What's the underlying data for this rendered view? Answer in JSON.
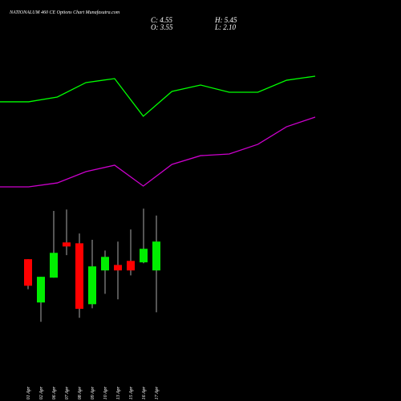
{
  "header": {
    "title": "NATIONALUM 460 CE Options Chart Munafasutra.com",
    "close": "C: 4.55",
    "open": "O: 3.55",
    "high": "H: 5.45",
    "low": "L: 2.10"
  },
  "chart_data": [
    {
      "type": "line",
      "x": [
        0,
        1,
        2,
        3,
        4,
        5,
        6,
        7,
        8,
        9,
        10,
        11
      ],
      "xlim": [
        0,
        11
      ],
      "ylim": [
        0,
        100
      ],
      "series": [
        {
          "color": "#00ff00",
          "values": [
            72.4,
            72.4,
            75.9,
            86.5,
            89.4,
            61.8,
            80.0,
            84.7,
            79.4,
            79.4,
            88.2,
            91.2
          ]
        },
        {
          "color": "#cc00cc",
          "values": [
            10.0,
            10.0,
            12.9,
            21.2,
            25.9,
            10.6,
            26.5,
            32.9,
            34.1,
            41.2,
            54.1,
            61.2
          ]
        }
      ]
    },
    {
      "type": "candlestick",
      "categories": [
        "01 Apr",
        "02 Apr",
        "06 Apr",
        "07 Apr",
        "08 Apr",
        "09 Apr",
        "10 Apr",
        "13 Apr",
        "15 Apr",
        "16 Apr",
        "17 Apr"
      ],
      "open": [
        3.94,
        2.44,
        3.3,
        4.52,
        4.49,
        2.38,
        3.55,
        3.74,
        3.88,
        3.83,
        3.55
      ],
      "high": [
        3.94,
        3.33,
        5.61,
        5.66,
        4.83,
        4.61,
        4.24,
        4.55,
        4.97,
        5.69,
        5.45
      ],
      "low": [
        2.9,
        1.77,
        3.3,
        4.08,
        1.91,
        2.24,
        2.74,
        2.55,
        3.38,
        3.8,
        2.1
      ],
      "close": [
        3.02,
        3.33,
        4.16,
        4.38,
        2.22,
        3.69,
        4.02,
        3.55,
        3.55,
        4.3,
        4.55
      ],
      "up_color": "#00ee00",
      "down_color": "#ff0000",
      "ylim": [
        1.5,
        6.0
      ]
    }
  ]
}
